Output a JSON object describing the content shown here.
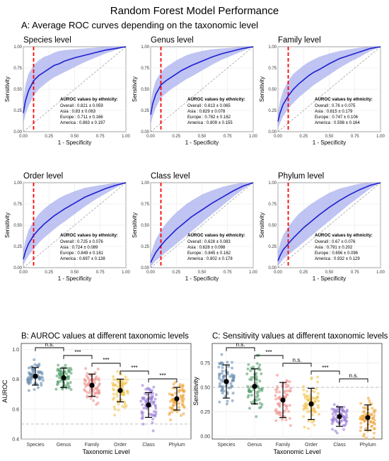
{
  "figure": {
    "title": "Random Forest Model Performance",
    "section_a_title": "A: Average ROC curves depending on the taxonomic level",
    "section_b_title": "B: AUROC values at different taxonomic levels",
    "section_c_title": "C: Sensitivity values at different taxonomic levels"
  },
  "colors": {
    "roc_line": "#1f1fd0",
    "roc_band": "#aab0ee",
    "cutoff_line": "#ff0000",
    "Species": "#6d8fb0",
    "Genus": "#56a06e",
    "Family": "#ef9390",
    "Order": "#f2c552",
    "Class": "#9b7fd6",
    "Phylum": "#f0a53a"
  },
  "chart_data": [
    {
      "type": "line",
      "title": "Species level",
      "xlabel": "1 - Specificity",
      "ylabel": "Sensitivity",
      "xlim": [
        0,
        1
      ],
      "ylim": [
        0,
        1
      ],
      "x_ticks": [
        "0.00",
        "0.25",
        "0.50",
        "0.75",
        "1.00"
      ],
      "y_ticks": [
        "0.00",
        "0.25",
        "0.50",
        "0.75",
        "1.00"
      ],
      "cutoff_x": 0.1,
      "x": [
        0,
        0.02,
        0.05,
        0.1,
        0.15,
        0.2,
        0.25,
        0.3,
        0.35,
        0.4,
        0.5,
        0.6,
        0.7,
        0.8,
        0.9,
        1.0
      ],
      "series": [
        {
          "name": "mean",
          "values": [
            0.22,
            0.36,
            0.48,
            0.6,
            0.66,
            0.7,
            0.74,
            0.78,
            0.8,
            0.83,
            0.87,
            0.9,
            0.93,
            0.96,
            0.98,
            1.0
          ]
        },
        {
          "name": "upper",
          "values": [
            0.36,
            0.55,
            0.68,
            0.78,
            0.84,
            0.88,
            0.9,
            0.93,
            0.95,
            0.96,
            0.97,
            0.98,
            0.99,
            1.0,
            1.0,
            1.0
          ]
        },
        {
          "name": "lower",
          "values": [
            0.1,
            0.2,
            0.3,
            0.42,
            0.5,
            0.55,
            0.6,
            0.64,
            0.67,
            0.7,
            0.76,
            0.82,
            0.87,
            0.92,
            0.96,
            1.0
          ]
        }
      ],
      "annotation": {
        "heading": "AUROC values by ethnicity:",
        "lines": [
          "Overall :  0.821  ±  0.059",
          "Asia :  0.83  ±  0.063",
          "Europe :  0.711  ±  0.166",
          "America :  0.863  ±  0.197"
        ]
      }
    },
    {
      "type": "line",
      "title": "Genus level",
      "xlabel": "1 - Specificity",
      "ylabel": "Sensitivity",
      "xlim": [
        0,
        1
      ],
      "ylim": [
        0,
        1
      ],
      "x_ticks": [
        "0.00",
        "0.25",
        "0.50",
        "0.75",
        "1.00"
      ],
      "y_ticks": [
        "0.00",
        "0.25",
        "0.50",
        "0.75",
        "1.00"
      ],
      "cutoff_x": 0.1,
      "x": [
        0,
        0.02,
        0.05,
        0.1,
        0.15,
        0.2,
        0.25,
        0.3,
        0.35,
        0.4,
        0.5,
        0.6,
        0.7,
        0.8,
        0.9,
        1.0
      ],
      "series": [
        {
          "name": "mean",
          "values": [
            0.2,
            0.33,
            0.44,
            0.55,
            0.6,
            0.64,
            0.68,
            0.72,
            0.75,
            0.78,
            0.83,
            0.88,
            0.92,
            0.95,
            0.98,
            1.0
          ]
        },
        {
          "name": "upper",
          "values": [
            0.32,
            0.48,
            0.6,
            0.7,
            0.76,
            0.8,
            0.84,
            0.87,
            0.9,
            0.92,
            0.95,
            0.97,
            0.98,
            0.99,
            1.0,
            1.0
          ]
        },
        {
          "name": "lower",
          "values": [
            0.08,
            0.18,
            0.28,
            0.4,
            0.45,
            0.5,
            0.54,
            0.58,
            0.62,
            0.65,
            0.72,
            0.79,
            0.85,
            0.9,
            0.95,
            1.0
          ]
        }
      ],
      "annotation": {
        "heading": "AUROC values by ethnicity:",
        "lines": [
          "Overall :  0.813  ±  0.065",
          "Asia :  0.829  ±  0.078",
          "Europe :  0.782  ±  0.162",
          "America :  0.809  ±  0.155"
        ]
      }
    },
    {
      "type": "line",
      "title": "Family level",
      "xlabel": "1 - Specificity",
      "ylabel": "Sensitivity",
      "xlim": [
        0,
        1
      ],
      "ylim": [
        0,
        1
      ],
      "x_ticks": [
        "0.00",
        "0.25",
        "0.50",
        "0.75",
        "1.00"
      ],
      "y_ticks": [
        "0.00",
        "0.25",
        "0.50",
        "0.75",
        "1.00"
      ],
      "cutoff_x": 0.1,
      "x": [
        0,
        0.02,
        0.05,
        0.1,
        0.15,
        0.2,
        0.25,
        0.3,
        0.35,
        0.4,
        0.5,
        0.6,
        0.7,
        0.8,
        0.9,
        1.0
      ],
      "series": [
        {
          "name": "mean",
          "values": [
            0.12,
            0.22,
            0.32,
            0.42,
            0.5,
            0.56,
            0.61,
            0.66,
            0.7,
            0.73,
            0.8,
            0.86,
            0.9,
            0.94,
            0.98,
            1.0
          ]
        },
        {
          "name": "upper",
          "values": [
            0.22,
            0.36,
            0.48,
            0.6,
            0.68,
            0.73,
            0.78,
            0.82,
            0.85,
            0.88,
            0.92,
            0.95,
            0.97,
            0.99,
            1.0,
            1.0
          ]
        },
        {
          "name": "lower",
          "values": [
            0.04,
            0.1,
            0.18,
            0.27,
            0.34,
            0.4,
            0.45,
            0.5,
            0.55,
            0.59,
            0.67,
            0.75,
            0.82,
            0.88,
            0.95,
            1.0
          ]
        }
      ],
      "annotation": {
        "heading": "AUROC values by ethnicity:",
        "lines": [
          "Overall :  0.76  ±  0.075",
          "Asia :  0.815  ±  0.179",
          "Europe :  0.747  ±  0.106",
          "America :  0.598  ±  0.164"
        ]
      }
    },
    {
      "type": "line",
      "title": "Order level",
      "xlabel": "1 - Specificity",
      "ylabel": "Sensitivity",
      "xlim": [
        0,
        1
      ],
      "ylim": [
        0,
        1
      ],
      "x_ticks": [
        "0.00",
        "0.25",
        "0.50",
        "0.75",
        "1.00"
      ],
      "y_ticks": [
        "0.00",
        "0.25",
        "0.50",
        "0.75",
        "1.00"
      ],
      "cutoff_x": 0.1,
      "x": [
        0,
        0.02,
        0.05,
        0.1,
        0.15,
        0.2,
        0.25,
        0.3,
        0.35,
        0.4,
        0.5,
        0.6,
        0.7,
        0.8,
        0.9,
        1.0
      ],
      "series": [
        {
          "name": "mean",
          "values": [
            0.1,
            0.19,
            0.28,
            0.38,
            0.45,
            0.51,
            0.56,
            0.61,
            0.65,
            0.69,
            0.76,
            0.83,
            0.88,
            0.93,
            0.97,
            1.0
          ]
        },
        {
          "name": "upper",
          "values": [
            0.2,
            0.32,
            0.44,
            0.55,
            0.63,
            0.69,
            0.74,
            0.78,
            0.82,
            0.85,
            0.9,
            0.94,
            0.96,
            0.98,
            1.0,
            1.0
          ]
        },
        {
          "name": "lower",
          "values": [
            0.03,
            0.08,
            0.14,
            0.22,
            0.29,
            0.35,
            0.4,
            0.45,
            0.5,
            0.54,
            0.63,
            0.72,
            0.8,
            0.87,
            0.94,
            1.0
          ]
        }
      ],
      "annotation": {
        "heading": "AUROC values by ethnicity:",
        "lines": [
          "Overall :  0.725  ±  0.076",
          "Asia :  0.724  ±  0.089",
          "Europe :  0.849  ±  0.161",
          "America :  0.697  ±  0.138"
        ]
      }
    },
    {
      "type": "line",
      "title": "Class level",
      "xlabel": "1 - Specificity",
      "ylabel": "Sensitivity",
      "xlim": [
        0,
        1
      ],
      "ylim": [
        0,
        1
      ],
      "x_ticks": [
        "0.00",
        "0.25",
        "0.50",
        "0.75",
        "1.00"
      ],
      "y_ticks": [
        "0.00",
        "0.25",
        "0.50",
        "0.75",
        "1.00"
      ],
      "cutoff_x": 0.1,
      "x": [
        0,
        0.02,
        0.05,
        0.1,
        0.15,
        0.2,
        0.25,
        0.3,
        0.35,
        0.4,
        0.5,
        0.6,
        0.7,
        0.8,
        0.9,
        1.0
      ],
      "series": [
        {
          "name": "mean",
          "values": [
            0.06,
            0.11,
            0.18,
            0.26,
            0.33,
            0.39,
            0.45,
            0.5,
            0.55,
            0.6,
            0.68,
            0.76,
            0.83,
            0.9,
            0.96,
            1.0
          ]
        },
        {
          "name": "upper",
          "values": [
            0.14,
            0.23,
            0.33,
            0.44,
            0.52,
            0.59,
            0.65,
            0.7,
            0.75,
            0.79,
            0.86,
            0.91,
            0.95,
            0.98,
            1.0,
            1.0
          ]
        },
        {
          "name": "lower",
          "values": [
            0.01,
            0.04,
            0.08,
            0.13,
            0.18,
            0.23,
            0.28,
            0.33,
            0.38,
            0.43,
            0.53,
            0.63,
            0.73,
            0.83,
            0.92,
            1.0
          ]
        }
      ],
      "annotation": {
        "heading": "AUROC values by ethnicity:",
        "lines": [
          "Overall :  0.628  ±  0.083",
          "Asia :  0.628  ±  0.098",
          "Europe :  0.845  ±  0.162",
          "America :  0.802  ±  0.178"
        ]
      }
    },
    {
      "type": "line",
      "title": "Phylum level",
      "xlabel": "1 - Specificity",
      "ylabel": "Sensitivity",
      "xlim": [
        0,
        1
      ],
      "ylim": [
        0,
        1
      ],
      "x_ticks": [
        "0.00",
        "0.25",
        "0.50",
        "0.75",
        "1.00"
      ],
      "y_ticks": [
        "0.00",
        "0.25",
        "0.50",
        "0.75",
        "1.00"
      ],
      "cutoff_x": 0.1,
      "x": [
        0,
        0.02,
        0.05,
        0.1,
        0.15,
        0.2,
        0.25,
        0.3,
        0.35,
        0.4,
        0.5,
        0.6,
        0.7,
        0.8,
        0.9,
        1.0
      ],
      "series": [
        {
          "name": "mean",
          "values": [
            0.08,
            0.14,
            0.21,
            0.28,
            0.35,
            0.41,
            0.47,
            0.52,
            0.57,
            0.62,
            0.71,
            0.79,
            0.86,
            0.92,
            0.97,
            1.0
          ]
        },
        {
          "name": "upper",
          "values": [
            0.18,
            0.28,
            0.38,
            0.48,
            0.56,
            0.63,
            0.68,
            0.73,
            0.77,
            0.81,
            0.88,
            0.93,
            0.96,
            0.99,
            1.0,
            1.0
          ]
        },
        {
          "name": "lower",
          "values": [
            0.02,
            0.05,
            0.1,
            0.15,
            0.2,
            0.25,
            0.3,
            0.35,
            0.4,
            0.45,
            0.55,
            0.65,
            0.75,
            0.84,
            0.93,
            1.0
          ]
        }
      ],
      "annotation": {
        "heading": "AUROC values by ethnicity:",
        "lines": [
          "Overall :  0.67  ±  0.076",
          "Asia :  0.791  ±  0.202",
          "Europe :  0.656  ±  0.096",
          "America :  0.932  ±  0.129"
        ]
      }
    },
    {
      "type": "scatter",
      "title": "B: AUROC values at different taxonomic levels",
      "xlabel": "Taxonomic Level",
      "ylabel": "AUROC",
      "categories": [
        "Species",
        "Genus",
        "Family",
        "Order",
        "Class",
        "Phylum"
      ],
      "ylim": [
        0.4,
        1.04
      ],
      "y_ticks": [
        "0.4",
        "0.6",
        "0.8",
        "1.0"
      ],
      "reference_line": 0.5,
      "means": [
        0.82,
        0.81,
        0.76,
        0.725,
        0.628,
        0.67
      ],
      "sd": [
        0.059,
        0.065,
        0.075,
        0.076,
        0.083,
        0.076
      ],
      "comparisons": [
        {
          "from": "Species",
          "to": "Genus",
          "label": "n.s."
        },
        {
          "from": "Genus",
          "to": "Family",
          "label": "***"
        },
        {
          "from": "Family",
          "to": "Order",
          "label": "***"
        },
        {
          "from": "Order",
          "to": "Class",
          "label": "***"
        },
        {
          "from": "Class",
          "to": "Phylum",
          "label": "***"
        }
      ]
    },
    {
      "type": "scatter",
      "title": "C: Sensitivity values at different taxonomic levels",
      "xlabel": "Taxonomic Level",
      "ylabel": "Sensitivity",
      "categories": [
        "Species",
        "Genus",
        "Family",
        "Order",
        "Class",
        "Phylum"
      ],
      "ylim": [
        -0.03,
        0.95
      ],
      "y_ticks": [
        "0.00",
        "0.25",
        "0.50",
        "0.75"
      ],
      "reference_line": 0.5,
      "means": [
        0.56,
        0.51,
        0.37,
        0.33,
        0.2,
        0.19
      ],
      "sd": [
        0.17,
        0.18,
        0.18,
        0.16,
        0.1,
        0.13
      ],
      "comparisons": [
        {
          "from": "Species",
          "to": "Genus",
          "label": "n.s."
        },
        {
          "from": "Genus",
          "to": "Family",
          "label": "***"
        },
        {
          "from": "Family",
          "to": "Order",
          "label": "n.s."
        },
        {
          "from": "Order",
          "to": "Class",
          "label": "***"
        },
        {
          "from": "Class",
          "to": "Phylum",
          "label": "n.s."
        }
      ]
    }
  ]
}
